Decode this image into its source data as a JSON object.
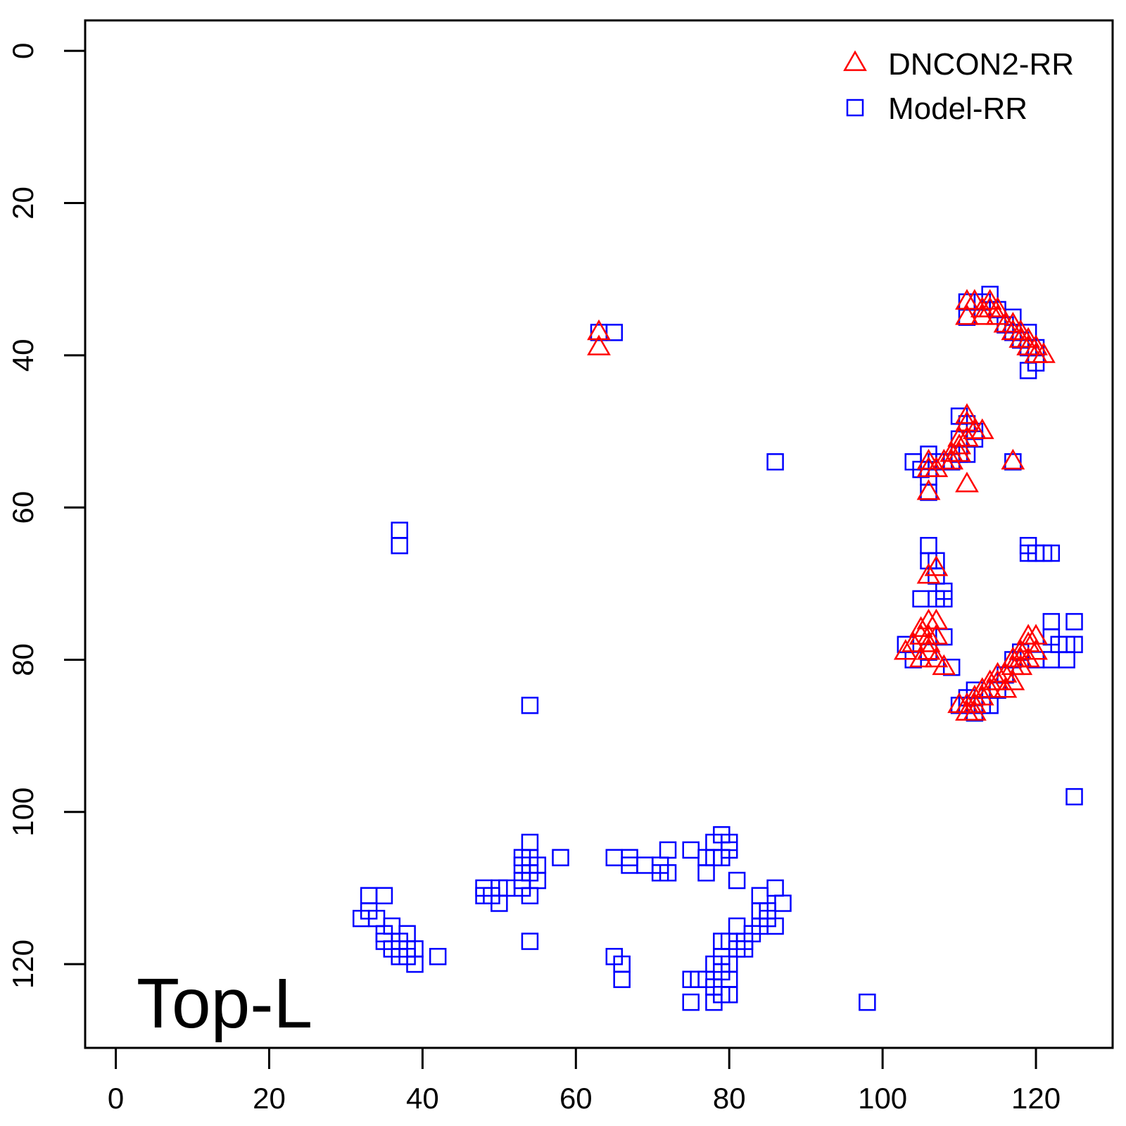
{
  "chart_data": {
    "type": "scatter",
    "x_ticks": [
      0,
      20,
      40,
      60,
      80,
      100,
      120
    ],
    "y_ticks": [
      0,
      20,
      40,
      60,
      80,
      100,
      120
    ],
    "xlim": [
      -4,
      130
    ],
    "ylim": [
      -4,
      131
    ],
    "y_inverted": true,
    "grid": false,
    "legend_position": "top-right",
    "annotation": "Top-L",
    "series": [
      {
        "name": "Model-RR",
        "marker": "square",
        "color": "#0000ff",
        "points": [
          [
            111,
            33
          ],
          [
            111,
            35
          ],
          [
            113,
            33
          ],
          [
            114,
            32
          ],
          [
            115,
            34
          ],
          [
            116,
            36
          ],
          [
            117,
            37
          ],
          [
            117,
            35
          ],
          [
            118,
            38
          ],
          [
            119,
            37
          ],
          [
            119,
            39
          ],
          [
            120,
            39
          ],
          [
            120,
            41
          ],
          [
            119,
            42
          ],
          [
            63,
            37
          ],
          [
            65,
            37
          ],
          [
            110,
            48
          ],
          [
            111,
            49
          ],
          [
            110,
            51
          ],
          [
            110,
            53
          ],
          [
            111,
            53
          ],
          [
            112,
            50
          ],
          [
            112,
            51
          ],
          [
            108,
            54
          ],
          [
            109,
            54
          ],
          [
            106,
            53
          ],
          [
            107,
            54
          ],
          [
            104,
            54
          ],
          [
            105,
            55
          ],
          [
            106,
            56
          ],
          [
            106,
            58
          ],
          [
            117,
            54
          ],
          [
            86,
            54
          ],
          [
            106,
            65
          ],
          [
            106,
            67
          ],
          [
            107,
            67
          ],
          [
            107,
            69
          ],
          [
            108,
            71
          ],
          [
            107,
            72
          ],
          [
            108,
            72
          ],
          [
            105,
            72
          ],
          [
            108,
            77
          ],
          [
            109,
            81
          ],
          [
            106,
            79
          ],
          [
            104,
            80
          ],
          [
            103,
            78
          ],
          [
            119,
            65
          ],
          [
            120,
            66
          ],
          [
            121,
            66
          ],
          [
            122,
            66
          ],
          [
            119,
            66
          ],
          [
            122,
            75
          ],
          [
            122,
            77
          ],
          [
            123,
            78
          ],
          [
            125,
            75
          ],
          [
            124,
            78
          ],
          [
            125,
            78
          ],
          [
            124,
            80
          ],
          [
            122,
            80
          ],
          [
            120,
            80
          ],
          [
            118,
            79
          ],
          [
            117,
            80
          ],
          [
            116,
            82
          ],
          [
            115,
            84
          ],
          [
            114,
            86
          ],
          [
            113,
            86
          ],
          [
            112,
            87
          ],
          [
            111,
            86
          ],
          [
            110,
            86
          ],
          [
            111,
            85
          ],
          [
            112,
            84
          ],
          [
            125,
            98
          ],
          [
            37,
            63
          ],
          [
            37,
            65
          ],
          [
            54,
            86
          ],
          [
            33,
            111
          ],
          [
            35,
            111
          ],
          [
            32,
            114
          ],
          [
            33,
            113
          ],
          [
            34,
            114
          ],
          [
            35,
            116
          ],
          [
            36,
            115
          ],
          [
            35,
            117
          ],
          [
            36,
            118
          ],
          [
            37,
            117
          ],
          [
            38,
            118
          ],
          [
            37,
            119
          ],
          [
            38,
            116
          ],
          [
            39,
            118
          ],
          [
            39,
            120
          ],
          [
            38,
            119
          ],
          [
            42,
            119
          ],
          [
            48,
            110
          ],
          [
            49,
            111
          ],
          [
            50,
            110
          ],
          [
            51,
            110
          ],
          [
            50,
            112
          ],
          [
            48,
            111
          ],
          [
            53,
            109
          ],
          [
            53,
            110
          ],
          [
            54,
            108
          ],
          [
            55,
            107
          ],
          [
            54,
            106
          ],
          [
            53,
            106
          ],
          [
            54,
            104
          ],
          [
            55,
            109
          ],
          [
            54,
            111
          ],
          [
            53,
            107
          ],
          [
            54,
            117
          ],
          [
            58,
            106
          ],
          [
            65,
            106
          ],
          [
            67,
            106
          ],
          [
            67,
            107
          ],
          [
            69,
            107
          ],
          [
            71,
            107
          ],
          [
            72,
            108
          ],
          [
            71,
            108
          ],
          [
            72,
            105
          ],
          [
            75,
            105
          ],
          [
            77,
            106
          ],
          [
            77,
            108
          ],
          [
            78,
            104
          ],
          [
            79,
            103
          ],
          [
            80,
            104
          ],
          [
            80,
            105
          ],
          [
            78,
            106
          ],
          [
            79,
            106
          ],
          [
            81,
            109
          ],
          [
            84,
            111
          ],
          [
            85,
            113
          ],
          [
            86,
            110
          ],
          [
            87,
            112
          ],
          [
            86,
            115
          ],
          [
            85,
            114
          ],
          [
            84,
            113
          ],
          [
            84,
            115
          ],
          [
            83,
            116
          ],
          [
            82,
            118
          ],
          [
            81,
            118
          ],
          [
            81,
            115
          ],
          [
            82,
            117
          ],
          [
            80,
            117
          ],
          [
            79,
            117
          ],
          [
            80,
            120
          ],
          [
            79,
            119
          ],
          [
            78,
            120
          ],
          [
            79,
            121
          ],
          [
            80,
            122
          ],
          [
            78,
            123
          ],
          [
            79,
            124
          ],
          [
            77,
            122
          ],
          [
            76,
            122
          ],
          [
            75,
            122
          ],
          [
            75,
            125
          ],
          [
            78,
            125
          ],
          [
            80,
            124
          ],
          [
            65,
            119
          ],
          [
            66,
            120
          ],
          [
            66,
            122
          ],
          [
            98,
            125
          ]
        ]
      },
      {
        "name": "DNCON2-RR",
        "marker": "triangle",
        "color": "#ff0000",
        "points": [
          [
            111,
            33
          ],
          [
            112,
            33
          ],
          [
            113,
            34
          ],
          [
            114,
            34
          ],
          [
            114,
            33
          ],
          [
            115,
            34
          ],
          [
            115,
            35
          ],
          [
            116,
            36
          ],
          [
            117,
            36
          ],
          [
            117,
            37
          ],
          [
            118,
            37
          ],
          [
            118,
            38
          ],
          [
            119,
            38
          ],
          [
            119,
            39
          ],
          [
            120,
            39
          ],
          [
            120,
            40
          ],
          [
            121,
            40
          ],
          [
            111,
            35
          ],
          [
            113,
            35
          ],
          [
            63,
            37
          ],
          [
            63,
            39
          ],
          [
            111,
            48
          ],
          [
            111,
            49
          ],
          [
            112,
            50
          ],
          [
            113,
            50
          ],
          [
            111,
            51
          ],
          [
            110,
            51
          ],
          [
            110,
            52
          ],
          [
            109,
            53
          ],
          [
            110,
            53
          ],
          [
            109,
            54
          ],
          [
            108,
            54
          ],
          [
            107,
            55
          ],
          [
            106,
            55
          ],
          [
            106,
            54
          ],
          [
            111,
            57
          ],
          [
            106,
            58
          ],
          [
            117,
            54
          ],
          [
            107,
            68
          ],
          [
            106,
            69
          ],
          [
            107,
            75
          ],
          [
            106,
            75
          ],
          [
            105,
            76
          ],
          [
            106,
            77
          ],
          [
            105,
            77
          ],
          [
            104,
            78
          ],
          [
            103,
            79
          ],
          [
            106,
            79
          ],
          [
            107,
            80
          ],
          [
            105,
            80
          ],
          [
            108,
            81
          ],
          [
            106,
            78
          ],
          [
            107,
            77
          ],
          [
            119,
            77
          ],
          [
            120,
            77
          ],
          [
            119,
            78
          ],
          [
            120,
            79
          ],
          [
            118,
            79
          ],
          [
            119,
            80
          ],
          [
            117,
            80
          ],
          [
            118,
            80
          ],
          [
            117,
            81
          ],
          [
            116,
            82
          ],
          [
            115,
            82
          ],
          [
            115,
            83
          ],
          [
            114,
            83
          ],
          [
            113,
            84
          ],
          [
            114,
            84
          ],
          [
            113,
            85
          ],
          [
            112,
            85
          ],
          [
            111,
            86
          ],
          [
            112,
            86
          ],
          [
            111,
            87
          ],
          [
            112,
            87
          ],
          [
            110,
            86
          ],
          [
            116,
            84
          ],
          [
            117,
            83
          ],
          [
            118,
            81
          ]
        ]
      }
    ]
  }
}
